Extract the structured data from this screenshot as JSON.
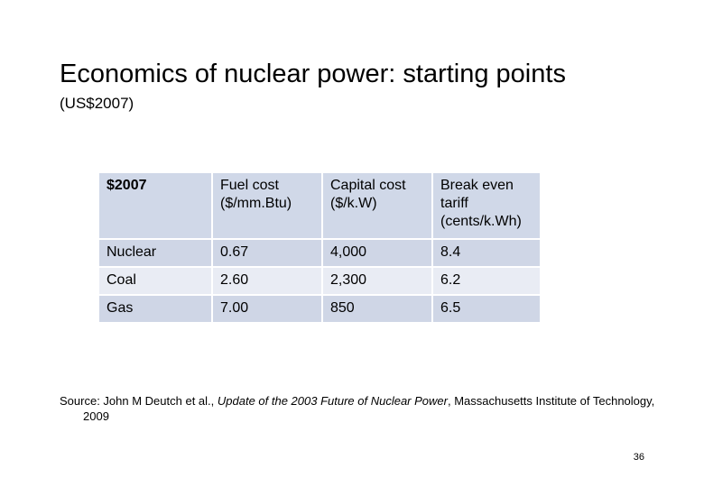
{
  "slide": {
    "title": "Economics of nuclear power: starting points",
    "subtitle": "(US$2007)",
    "page_number": "36"
  },
  "table": {
    "headers": [
      "$2007",
      "Fuel cost ($/mm.Btu)",
      "Capital cost ($/k.W)",
      "Break even tariff (cents/k.Wh)"
    ],
    "rows": [
      [
        "Nuclear",
        "0.67",
        "4,000",
        "8.4"
      ],
      [
        "Coal",
        "2.60",
        "2,300",
        "6.2"
      ],
      [
        "Gas",
        "7.00",
        "850",
        "6.5"
      ]
    ]
  },
  "source": {
    "prefix": "Source: John M Deutch et al., ",
    "title": "Update of the 2003 Future of Nuclear Power",
    "suffix": ", Massachusetts Institute of Technology, 2009"
  }
}
